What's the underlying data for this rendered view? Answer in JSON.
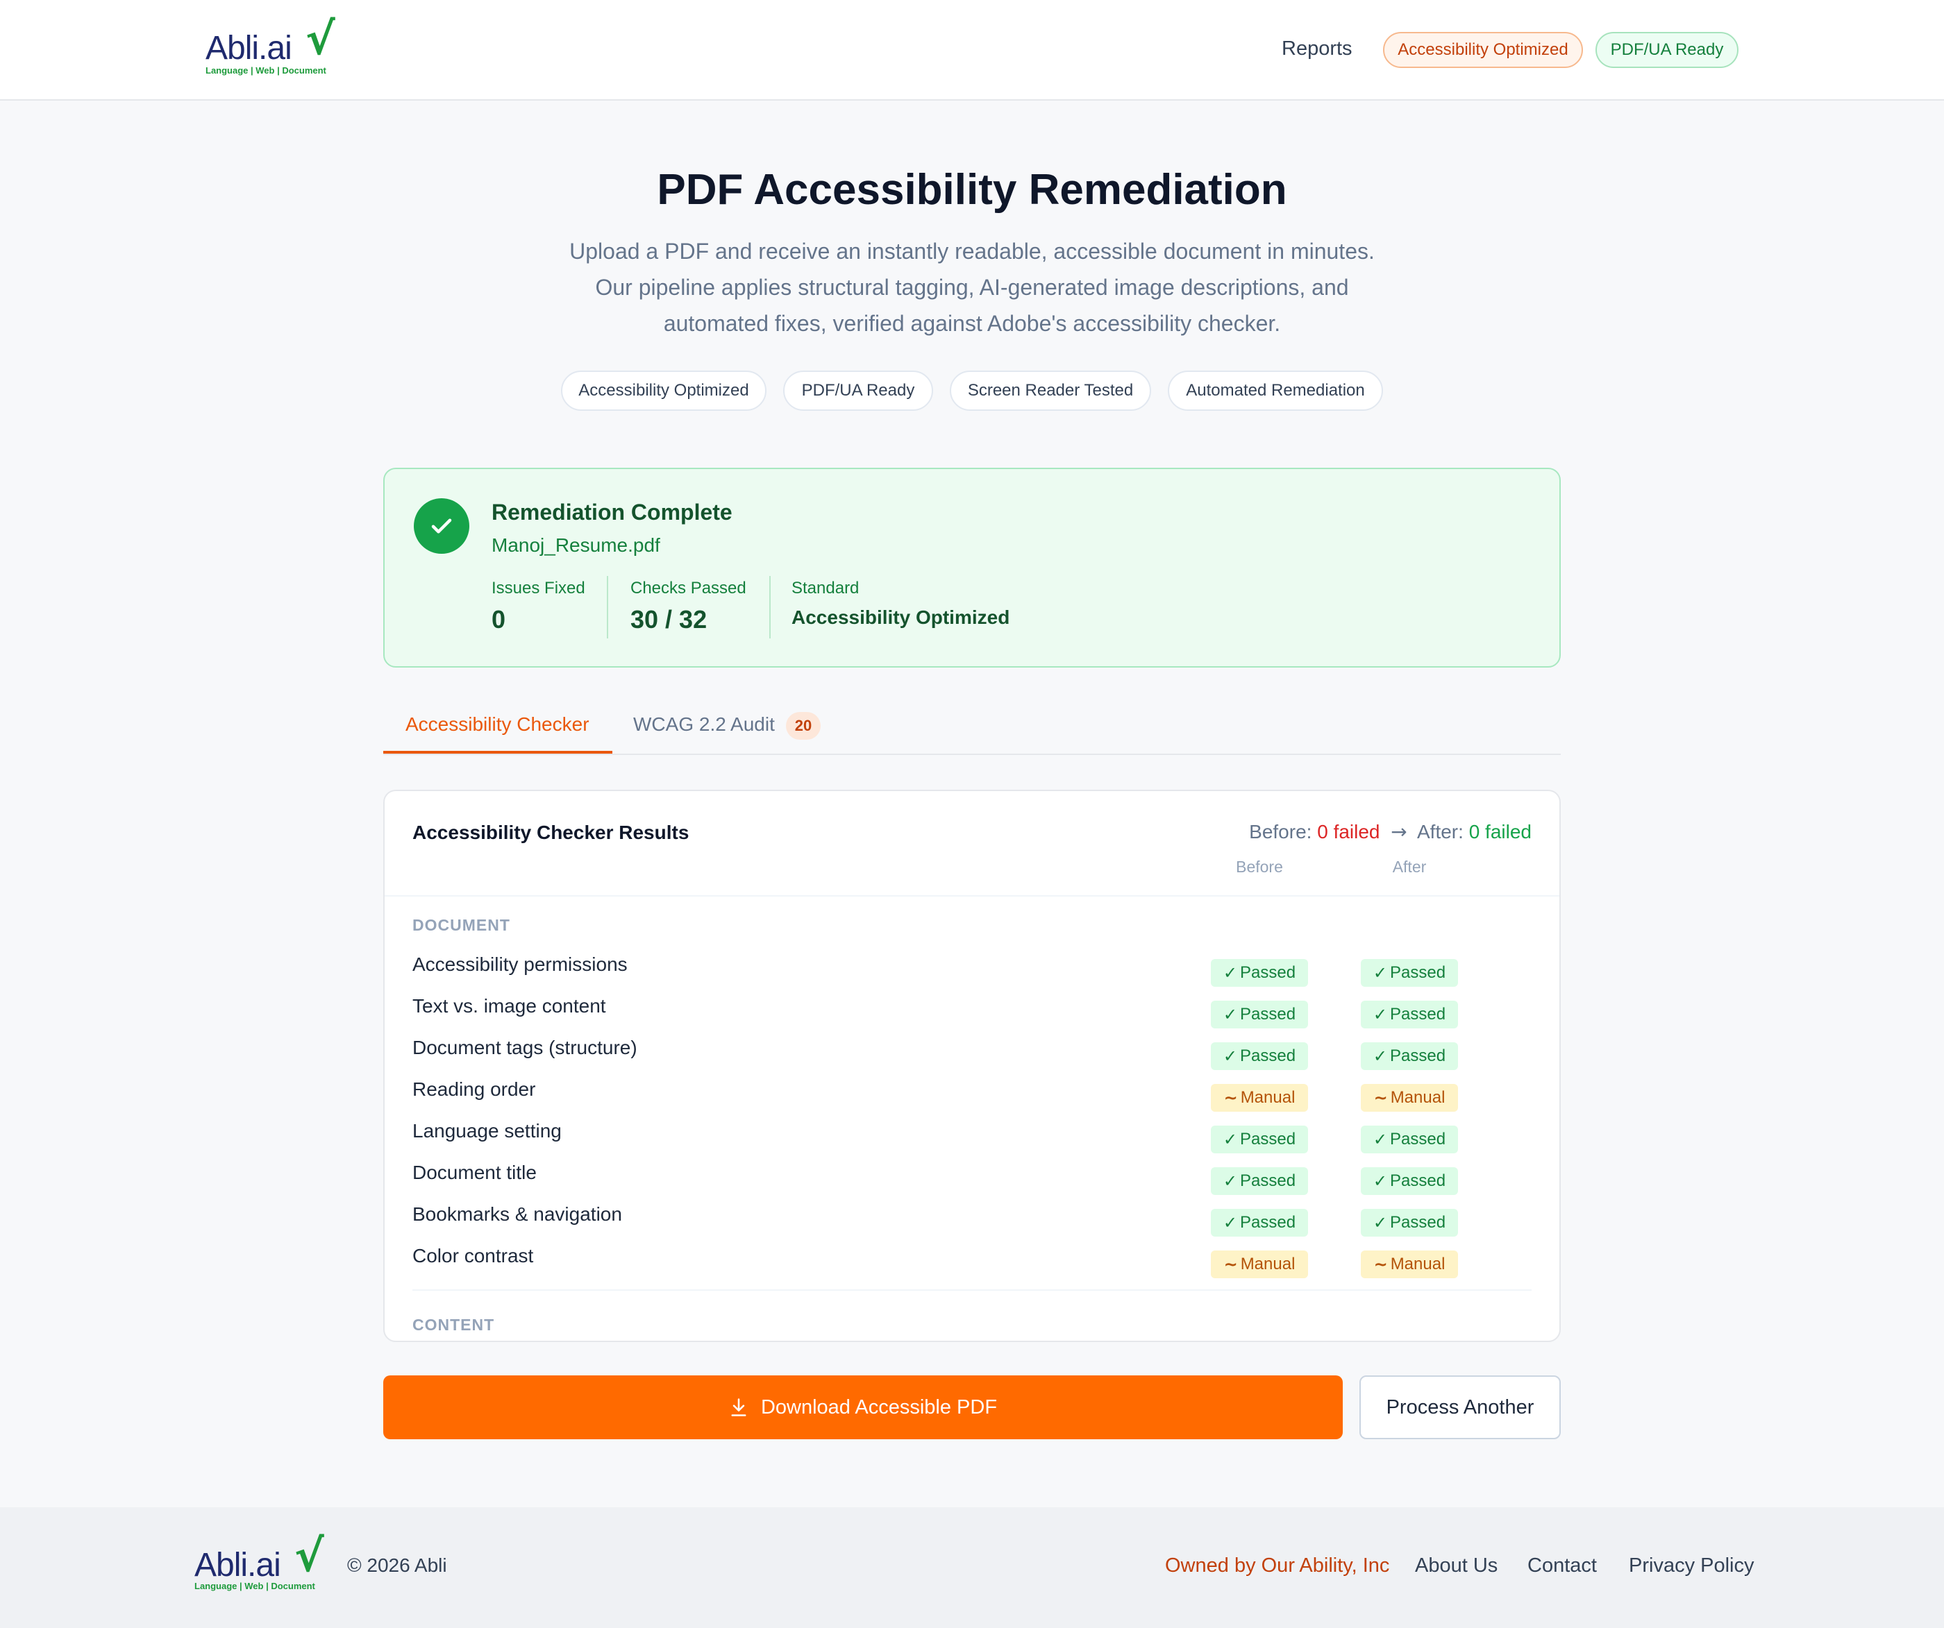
{
  "header": {
    "logo_text": "Abli.ai",
    "logo_check": "√",
    "logo_tagline": "Language | Web | Document",
    "nav_reports": "Reports",
    "badge_optimized": "Accessibility Optimized",
    "badge_pdfua": "PDF/UA Ready"
  },
  "hero": {
    "title": "PDF Accessibility Remediation",
    "subtitle": "Upload a PDF and receive an instantly readable, accessible document in minutes. Our pipeline applies structural tagging, AI-generated image descriptions, and automated fixes, verified against Adobe's accessibility checker.",
    "chips": [
      "Accessibility Optimized",
      "PDF/UA Ready",
      "Screen Reader Tested",
      "Automated Remediation"
    ]
  },
  "result_summary": {
    "title": "Remediation Complete",
    "filename": "Manoj_Resume.pdf",
    "issues_fixed_label": "Issues Fixed",
    "issues_fixed_value": "0",
    "checks_passed_label": "Checks Passed",
    "checks_passed_value": "30 / 32",
    "standard_label": "Standard",
    "standard_value": "Accessibility Optimized"
  },
  "tabs": {
    "checker": "Accessibility Checker",
    "wcag": "WCAG 2.2 Audit",
    "wcag_count": "20"
  },
  "checker": {
    "title": "Accessibility Checker Results",
    "before_label": "Before:",
    "before_value": "0 failed",
    "arrow": "→",
    "after_label": "After:",
    "after_value": "0 failed",
    "col_before": "Before",
    "col_after": "After",
    "section_document": "DOCUMENT",
    "section_content": "CONTENT",
    "rows": [
      {
        "label": "Accessibility permissions",
        "before": "Passed",
        "after": "Passed"
      },
      {
        "label": "Text vs. image content",
        "before": "Passed",
        "after": "Passed"
      },
      {
        "label": "Document tags (structure)",
        "before": "Passed",
        "after": "Passed"
      },
      {
        "label": "Reading order",
        "before": "Manual",
        "after": "Manual"
      },
      {
        "label": "Language setting",
        "before": "Passed",
        "after": "Passed"
      },
      {
        "label": "Document title",
        "before": "Passed",
        "after": "Passed"
      },
      {
        "label": "Bookmarks & navigation",
        "before": "Passed",
        "after": "Passed"
      },
      {
        "label": "Color contrast",
        "before": "Manual",
        "after": "Manual"
      }
    ],
    "glyph_passed": "✓",
    "glyph_manual": "~"
  },
  "actions": {
    "download": "Download Accessible PDF",
    "process_another": "Process Another"
  },
  "footer": {
    "copyright": "© 2026 Abli",
    "owner": "Owned by Our Ability, Inc",
    "about": "About Us",
    "contact": "Contact",
    "privacy": "Privacy Policy"
  },
  "colors": {
    "accent": "#ff6a00",
    "success": "#16a34a",
    "manual": "#b45309",
    "brand_navy": "#1f2a6e"
  }
}
